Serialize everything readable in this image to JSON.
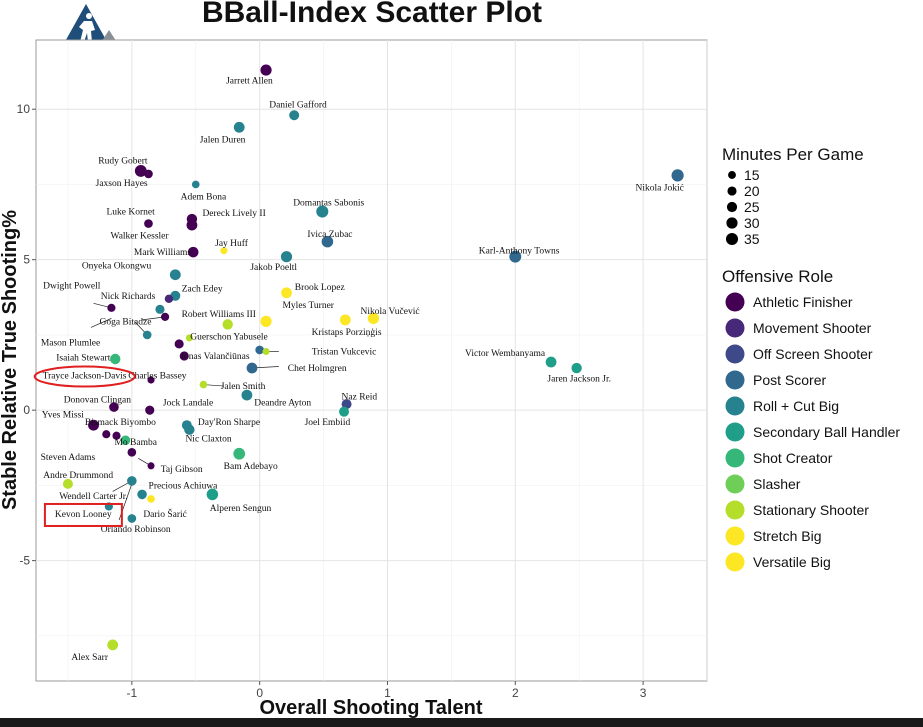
{
  "chart_data": {
    "type": "scatter",
    "title": "BBall-Index Scatter Plot",
    "xlabel": "Overall Shooting Talent",
    "ylabel": "Stable Relative True Shooting%",
    "xlim": [
      -1.75,
      3.5
    ],
    "ylim": [
      -9.0,
      12.3
    ],
    "x_ticks": [
      -1,
      0,
      1,
      2,
      3
    ],
    "y_ticks": [
      -5,
      0,
      5,
      10
    ],
    "grid": true,
    "size_legend": {
      "title": "Minutes Per Game",
      "values": [
        15,
        20,
        25,
        30,
        35
      ]
    },
    "color_legend": {
      "title": "Offensive Role",
      "roles": [
        {
          "name": "Athletic Finisher",
          "color": "#440154"
        },
        {
          "name": "Movement Shooter",
          "color": "#482878"
        },
        {
          "name": "Off Screen Shooter",
          "color": "#3e4989"
        },
        {
          "name": "Post Scorer",
          "color": "#31688e"
        },
        {
          "name": "Roll + Cut Big",
          "color": "#26828e"
        },
        {
          "name": "Secondary Ball Handler",
          "color": "#1f9e89"
        },
        {
          "name": "Shot Creator",
          "color": "#35b779"
        },
        {
          "name": "Slasher",
          "color": "#6ece58"
        },
        {
          "name": "Stationary Shooter",
          "color": "#b5de2b"
        },
        {
          "name": "Stretch Big",
          "color": "#fde725"
        },
        {
          "name": "Versatile Big",
          "color": "#fde725"
        }
      ]
    },
    "highlighted": [
      "Trayce Jackson-Davis",
      "Kevon Looney"
    ],
    "points": [
      {
        "name": "Jarrett Allen",
        "x": 0.05,
        "y": 11.3,
        "role": 0,
        "mpg": 30
      },
      {
        "name": "Daniel Gafford",
        "x": 0.27,
        "y": 9.8,
        "role": 4,
        "mpg": 24
      },
      {
        "name": "Jalen Duren",
        "x": -0.16,
        "y": 9.4,
        "role": 4,
        "mpg": 28
      },
      {
        "name": "Rudy Gobert",
        "x": -0.93,
        "y": 7.95,
        "role": 0,
        "mpg": 34
      },
      {
        "name": "Jaxson Hayes",
        "x": -0.87,
        "y": 7.85,
        "role": 0,
        "mpg": 18
      },
      {
        "name": "Nikola Jokić",
        "x": 3.27,
        "y": 7.8,
        "role": 3,
        "mpg": 36
      },
      {
        "name": "Adem Bona",
        "x": -0.5,
        "y": 7.5,
        "role": 4,
        "mpg": 14
      },
      {
        "name": "Domantas Sabonis",
        "x": 0.49,
        "y": 6.6,
        "role": 4,
        "mpg": 35
      },
      {
        "name": "Dereck Lively II",
        "x": -0.53,
        "y": 6.35,
        "role": 0,
        "mpg": 26
      },
      {
        "name": "Luke Kornet",
        "x": -0.87,
        "y": 6.2,
        "role": 0,
        "mpg": 18
      },
      {
        "name": "Walker Kessler",
        "x": -0.53,
        "y": 6.15,
        "role": 0,
        "mpg": 28
      },
      {
        "name": "Ivica Zubac",
        "x": 0.53,
        "y": 5.6,
        "role": 3,
        "mpg": 32
      },
      {
        "name": "Mark Williams",
        "x": -0.52,
        "y": 5.25,
        "role": 0,
        "mpg": 27
      },
      {
        "name": "Jay Huff",
        "x": -0.28,
        "y": 5.3,
        "role": 9,
        "mpg": 12
      },
      {
        "name": "Jakob Poeltl",
        "x": 0.21,
        "y": 5.1,
        "role": 4,
        "mpg": 30
      },
      {
        "name": "Karl-Anthony Towns",
        "x": 2.0,
        "y": 5.1,
        "role": 3,
        "mpg": 34
      },
      {
        "name": "Onyeka Okongwu",
        "x": -0.66,
        "y": 4.5,
        "role": 4,
        "mpg": 28
      },
      {
        "name": "Brook Lopez",
        "x": 0.21,
        "y": 3.9,
        "role": 9,
        "mpg": 28
      },
      {
        "name": "Zach Edey",
        "x": -0.66,
        "y": 3.8,
        "role": 4,
        "mpg": 24
      },
      {
        "name": "Dwight Powell",
        "x": -0.71,
        "y": 3.7,
        "role": 1,
        "mpg": 17
      },
      {
        "name": "Nick Richards",
        "x": -0.78,
        "y": 3.35,
        "role": 4,
        "mpg": 20
      },
      {
        "name": "Goga Bitadze",
        "x": -1.16,
        "y": 3.4,
        "role": 0,
        "mpg": 16
      },
      {
        "name": "Robert Williams III",
        "x": -0.74,
        "y": 3.1,
        "role": 0,
        "mpg": 16
      },
      {
        "name": "Myles Turner",
        "x": 0.05,
        "y": 2.95,
        "role": 9,
        "mpg": 30
      },
      {
        "name": "Nikola Vučević",
        "x": 0.89,
        "y": 3.05,
        "role": 9,
        "mpg": 31
      },
      {
        "name": "Kristaps Porziņģis",
        "x": 0.67,
        "y": 3.0,
        "role": 9,
        "mpg": 28
      },
      {
        "name": "Mason Plumlee",
        "x": -0.25,
        "y": 2.85,
        "role": 8,
        "mpg": 26
      },
      {
        "name": "Guerschon Yabusele",
        "x": -0.55,
        "y": 2.4,
        "role": 8,
        "mpg": 12
      },
      {
        "name": "Isaiah Stewart",
        "x": -0.88,
        "y": 2.5,
        "role": 4,
        "mpg": 18
      },
      {
        "name": "Jonas Valančiūnas",
        "x": -0.63,
        "y": 2.2,
        "role": 0,
        "mpg": 20
      },
      {
        "name": "Tristan Vukcevic",
        "x": 0.0,
        "y": 2.0,
        "role": 3,
        "mpg": 18
      },
      {
        "name": "Tristan Vukcevic (2)",
        "x": 0.05,
        "y": 1.95,
        "role": 8,
        "mpg": 12
      },
      {
        "name": "Victor Wembanyama",
        "x": 2.28,
        "y": 1.6,
        "role": 5,
        "mpg": 28
      },
      {
        "name": "Chet Holmgren",
        "x": -0.06,
        "y": 1.4,
        "role": 3,
        "mpg": 28
      },
      {
        "name": "Jaren Jackson Jr.",
        "x": 2.48,
        "y": 1.4,
        "role": 5,
        "mpg": 26
      },
      {
        "name": "Charles Bassey",
        "x": -0.59,
        "y": 1.8,
        "role": 0,
        "mpg": 20
      },
      {
        "name": "Trayce Jackson-Davis",
        "x": -1.13,
        "y": 1.7,
        "role": 6,
        "mpg": 26
      },
      {
        "name": "Jalen Smith",
        "x": -0.44,
        "y": 0.85,
        "role": 8,
        "mpg": 14
      },
      {
        "name": "Deandre Ayton",
        "x": -0.1,
        "y": 0.5,
        "role": 4,
        "mpg": 28
      },
      {
        "name": "Naz Reid",
        "x": 0.68,
        "y": 0.2,
        "role": 2,
        "mpg": 24
      },
      {
        "name": "Donovan Clingan",
        "x": -0.85,
        "y": 1.0,
        "role": 0,
        "mpg": 12
      },
      {
        "name": "Jock Landale",
        "x": -0.86,
        "y": 0.0,
        "role": 0,
        "mpg": 20
      },
      {
        "name": "Joel Embiid",
        "x": 0.66,
        "y": -0.05,
        "role": 5,
        "mpg": 24
      },
      {
        "name": "Yves Missi",
        "x": -1.14,
        "y": 0.1,
        "role": 0,
        "mpg": 22
      },
      {
        "name": "Bismack Biyombo",
        "x": -1.3,
        "y": -0.5,
        "role": 0,
        "mpg": 28
      },
      {
        "name": "Day'Ron Sharpe",
        "x": -0.57,
        "y": -0.5,
        "role": 4,
        "mpg": 24
      },
      {
        "name": "Nic Claxton",
        "x": -0.55,
        "y": -0.65,
        "role": 4,
        "mpg": 26
      },
      {
        "name": "Mo Bamba",
        "x": -1.2,
        "y": -0.8,
        "role": 0,
        "mpg": 16
      },
      {
        "name": "Mo Bamba (2)",
        "x": -1.12,
        "y": -0.85,
        "role": 0,
        "mpg": 16
      },
      {
        "name": "Mo Bamba (3)",
        "x": -1.05,
        "y": -1.0,
        "role": 6,
        "mpg": 22
      },
      {
        "name": "Steven Adams",
        "x": -1.0,
        "y": -1.4,
        "role": 0,
        "mpg": 18
      },
      {
        "name": "Bam Adebayo",
        "x": -0.16,
        "y": -1.45,
        "role": 6,
        "mpg": 33
      },
      {
        "name": "Taj Gibson",
        "x": -0.85,
        "y": -1.85,
        "role": 0,
        "mpg": 12
      },
      {
        "name": "Andre Drummond",
        "x": -1.5,
        "y": -2.45,
        "role": 8,
        "mpg": 24
      },
      {
        "name": "Precious Achiuwa",
        "x": -1.0,
        "y": -2.35,
        "role": 4,
        "mpg": 22
      },
      {
        "name": "Wendell Carter Jr.",
        "x": -0.92,
        "y": -2.8,
        "role": 4,
        "mpg": 22
      },
      {
        "name": "Dario Šarić",
        "x": -0.85,
        "y": -2.95,
        "role": 9,
        "mpg": 14
      },
      {
        "name": "Alperen Sengun",
        "x": -0.37,
        "y": -2.8,
        "role": 5,
        "mpg": 32
      },
      {
        "name": "Kevon Looney",
        "x": -1.18,
        "y": -3.2,
        "role": 4,
        "mpg": 16
      },
      {
        "name": "Orlando Robinson",
        "x": -1.0,
        "y": -3.6,
        "role": 4,
        "mpg": 18
      },
      {
        "name": "Alex Sarr",
        "x": -1.15,
        "y": -7.8,
        "role": 8,
        "mpg": 28
      }
    ],
    "labels": [
      {
        "text": "Jarrett Allen",
        "x": -0.08,
        "y": 10.95
      },
      {
        "text": "Daniel Gafford",
        "x": 0.3,
        "y": 10.15
      },
      {
        "text": "Jalen Duren",
        "x": -0.29,
        "y": 9.0
      },
      {
        "text": "Rudy Gobert",
        "x": -1.07,
        "y": 8.3
      },
      {
        "text": "Jaxson Hayes",
        "x": -1.08,
        "y": 7.55
      },
      {
        "text": "Nikola Jokić",
        "x": 3.13,
        "y": 7.4
      },
      {
        "text": "Adem Bona",
        "x": -0.44,
        "y": 7.1
      },
      {
        "text": "Domantas Sabonis",
        "x": 0.54,
        "y": 6.9
      },
      {
        "text": "Luke Kornet",
        "x": -1.01,
        "y": 6.6
      },
      {
        "text": "Dereck Lively II",
        "x": -0.2,
        "y": 6.55
      },
      {
        "text": "Walker Kessler",
        "x": -0.94,
        "y": 5.8
      },
      {
        "text": "Ivica Zubac",
        "x": 0.55,
        "y": 5.85
      },
      {
        "text": "Jay Huff",
        "x": -0.22,
        "y": 5.55
      },
      {
        "text": "Mark Williams",
        "x": -0.76,
        "y": 5.25
      },
      {
        "text": "Karl-Anthony Towns",
        "x": 2.03,
        "y": 5.3
      },
      {
        "text": "Onyeka Okongwu",
        "x": -1.12,
        "y": 4.8
      },
      {
        "text": "Jakob Poeltl",
        "x": 0.11,
        "y": 4.75
      },
      {
        "text": "Dwight Powell",
        "x": -1.47,
        "y": 4.15
      },
      {
        "text": "Brook Lopez",
        "x": 0.47,
        "y": 4.1
      },
      {
        "text": "Zach Edey",
        "x": -0.45,
        "y": 4.05
      },
      {
        "text": "Nick Richards",
        "x": -1.03,
        "y": 3.8
      },
      {
        "text": "Myles Turner",
        "x": 0.38,
        "y": 3.5
      },
      {
        "text": "Nikola Vučević",
        "x": 1.02,
        "y": 3.3
      },
      {
        "text": "Robert Williams III",
        "x": -0.32,
        "y": 3.2
      },
      {
        "text": "Goga Bitadze",
        "x": -1.05,
        "y": 2.95
      },
      {
        "text": "Kristaps Porziņģis",
        "x": 0.68,
        "y": 2.6
      },
      {
        "text": "Guerschon Yabusele",
        "x": -0.24,
        "y": 2.45
      },
      {
        "text": "Mason Plumlee",
        "x": -1.48,
        "y": 2.25
      },
      {
        "text": "Tristan Vukcevic",
        "x": 0.66,
        "y": 1.95
      },
      {
        "text": "Victor Wembanyama",
        "x": 1.92,
        "y": 1.9
      },
      {
        "text": "Jonas Valančiūnas",
        "x": -0.35,
        "y": 1.8
      },
      {
        "text": "Isaiah Stewart",
        "x": -1.38,
        "y": 1.75
      },
      {
        "text": "Chet Holmgren",
        "x": 0.45,
        "y": 1.4
      },
      {
        "text": "Trayce Jackson-Davis",
        "x": -1.37,
        "y": 1.15
      },
      {
        "text": "Charles Bassey",
        "x": -0.8,
        "y": 1.15
      },
      {
        "text": "Jaren Jackson Jr.",
        "x": 2.5,
        "y": 1.05
      },
      {
        "text": "Jalen Smith",
        "x": -0.13,
        "y": 0.8
      },
      {
        "text": "Naz Reid",
        "x": 0.78,
        "y": 0.45
      },
      {
        "text": "Donovan Clingan",
        "x": -1.27,
        "y": 0.35
      },
      {
        "text": "Jock Landale",
        "x": -0.56,
        "y": 0.25
      },
      {
        "text": "Deandre Ayton",
        "x": 0.18,
        "y": 0.25
      },
      {
        "text": "Yves Missi",
        "x": -1.54,
        "y": -0.15
      },
      {
        "text": "Joel Embiid",
        "x": 0.53,
        "y": -0.4
      },
      {
        "text": "Bismack Biyombo",
        "x": -1.09,
        "y": -0.4
      },
      {
        "text": "Day'Ron Sharpe",
        "x": -0.24,
        "y": -0.4
      },
      {
        "text": "Nic Claxton",
        "x": -0.4,
        "y": -0.95
      },
      {
        "text": "Mo Bamba",
        "x": -0.97,
        "y": -1.05
      },
      {
        "text": "Steven Adams",
        "x": -1.5,
        "y": -1.55
      },
      {
        "text": "Bam Adebayo",
        "x": -0.07,
        "y": -1.85
      },
      {
        "text": "Taj Gibson",
        "x": -0.61,
        "y": -1.95
      },
      {
        "text": "Andre Drummond",
        "x": -1.42,
        "y": -2.15
      },
      {
        "text": "Precious Achiuwa",
        "x": -0.6,
        "y": -2.5
      },
      {
        "text": "Wendell Carter Jr.",
        "x": -1.3,
        "y": -2.85
      },
      {
        "text": "Alperen Sengun",
        "x": -0.15,
        "y": -3.25
      },
      {
        "text": "Kevon Looney",
        "x": -1.38,
        "y": -3.45
      },
      {
        "text": "Dario Šarić",
        "x": -0.74,
        "y": -3.45
      },
      {
        "text": "Orlando Robinson",
        "x": -0.97,
        "y": -3.95
      },
      {
        "text": "Alex Sarr",
        "x": -1.33,
        "y": -8.2
      }
    ],
    "leaders": [
      {
        "from": [
          -1.3,
          3.55
        ],
        "to": [
          -1.16,
          3.4
        ]
      },
      {
        "from": [
          -1.32,
          2.75
        ],
        "to": [
          -1.16,
          3.05
        ]
      },
      {
        "from": [
          -0.92,
          3.0
        ],
        "to": [
          -0.74,
          3.1
        ]
      },
      {
        "from": [
          -0.98,
          2.95
        ],
        "to": [
          -0.88,
          2.5
        ]
      },
      {
        "from": [
          0.15,
          1.95
        ],
        "to": [
          0.05,
          1.95
        ]
      },
      {
        "from": [
          0.15,
          1.45
        ],
        "to": [
          -0.06,
          1.4
        ]
      },
      {
        "from": [
          -0.28,
          0.8
        ],
        "to": [
          -0.44,
          0.85
        ]
      },
      {
        "from": [
          -0.85,
          -1.85
        ],
        "to": [
          -0.95,
          -1.6
        ]
      },
      {
        "from": [
          -1.15,
          -2.7
        ],
        "to": [
          -1.0,
          -2.35
        ]
      },
      {
        "from": [
          -1.1,
          -3.65
        ],
        "to": [
          -1.0,
          -2.45
        ]
      }
    ]
  }
}
